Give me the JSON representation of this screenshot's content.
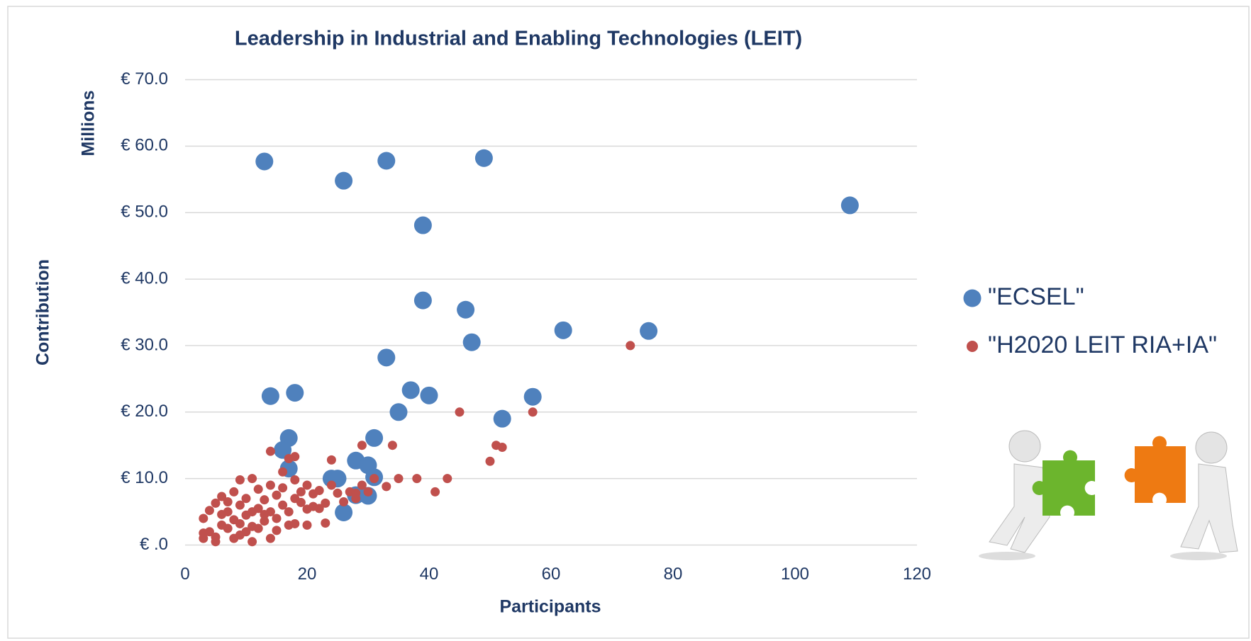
{
  "chart_data": {
    "type": "scatter",
    "title": "Leadership in Industrial and Enabling Technologies (LEIT)",
    "x_label": "Participants",
    "y_label": "Contribution",
    "y_unit_label": "Millions",
    "xlim": [
      0,
      120
    ],
    "xticks": [
      0,
      20,
      40,
      60,
      80,
      100,
      120
    ],
    "ylim": [
      0,
      70
    ],
    "yticks": [
      {
        "value": 0,
        "label": "€ .0"
      },
      {
        "value": 10,
        "label": "€ 10.0"
      },
      {
        "value": 20,
        "label": "€ 20.0"
      },
      {
        "value": 30,
        "label": "€ 30.0"
      },
      {
        "value": 40,
        "label": "€ 40.0"
      },
      {
        "value": 50,
        "label": "€ 50.0"
      },
      {
        "value": 60,
        "label": "€ 60.0"
      },
      {
        "value": 70,
        "label": "€ 70.0"
      }
    ],
    "grid": true,
    "legend": "right",
    "series": [
      {
        "name": "\"ECSEL\"",
        "color": "#4f81bd",
        "x": [
          13,
          26,
          33,
          49,
          109,
          39,
          39,
          46,
          47,
          62,
          76,
          33,
          14,
          18,
          37,
          40,
          35,
          57,
          52,
          17,
          16,
          31,
          17,
          28,
          30,
          24,
          25,
          31,
          28,
          30,
          26
        ],
        "values": [
          57.7,
          54.8,
          57.8,
          58.2,
          51.1,
          48.1,
          36.8,
          35.4,
          30.5,
          32.3,
          32.2,
          28.2,
          22.4,
          22.9,
          23.3,
          22.5,
          20,
          22.3,
          19,
          16.1,
          14.3,
          16.1,
          11.5,
          12.7,
          12,
          10,
          10,
          10.2,
          7.5,
          7.4,
          4.9
        ]
      },
      {
        "name": "\"H2020 LEIT RIA+IA\"",
        "color": "#c0504d",
        "x": [
          73,
          45,
          57,
          51,
          52,
          50,
          29,
          34,
          14,
          18,
          17,
          24,
          16,
          31,
          38,
          43,
          35,
          41,
          33,
          28,
          23,
          20,
          17,
          18,
          14,
          11,
          5,
          3,
          3,
          4,
          5,
          6,
          7,
          7,
          8,
          8,
          9,
          9,
          9,
          10,
          10,
          11,
          11,
          12,
          12,
          13,
          13,
          14,
          14,
          15,
          15,
          16,
          16,
          17,
          18,
          18,
          19,
          19,
          20,
          20,
          21,
          22,
          23,
          24,
          25,
          26,
          27,
          28,
          29,
          22,
          6,
          7,
          8,
          10,
          12,
          4,
          6,
          9,
          11,
          13,
          15,
          3,
          5,
          21,
          30
        ],
        "values": [
          30,
          20,
          20,
          15,
          14.7,
          12.6,
          15,
          15,
          14.1,
          13.3,
          13,
          12.8,
          11,
          10,
          10,
          10,
          10,
          8,
          8.8,
          7,
          3.3,
          3,
          3,
          3.2,
          1,
          0.5,
          0.5,
          1,
          4,
          2,
          6.3,
          7.3,
          5,
          2.5,
          8,
          3.8,
          9.8,
          6,
          1.5,
          7,
          4.5,
          10,
          2.8,
          8.4,
          5.5,
          6.8,
          3.6,
          9,
          5,
          7.5,
          4,
          8.6,
          6,
          5,
          9.8,
          7,
          6.4,
          8,
          9,
          5.4,
          7.7,
          8.2,
          6.3,
          9,
          7.8,
          6.5,
          8,
          7.8,
          9,
          5.5,
          3,
          6.5,
          1,
          2,
          2.5,
          5.2,
          4.6,
          3.2,
          5,
          4.6,
          2.2,
          1.8,
          1.2,
          5.8,
          8
        ]
      }
    ]
  }
}
